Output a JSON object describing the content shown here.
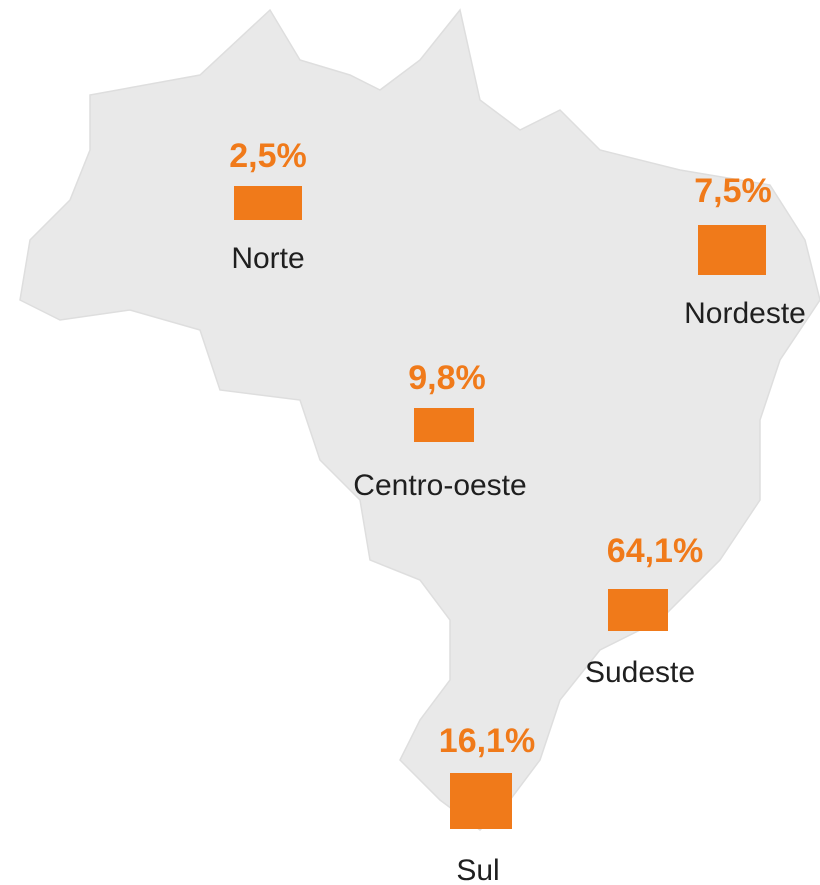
{
  "regions": [
    {
      "name": "Norte",
      "value": 2.5,
      "value_label": "2,5%"
    },
    {
      "name": "Nordeste",
      "value": 7.5,
      "value_label": "7,5%"
    },
    {
      "name": "Centro-oeste",
      "value": 9.8,
      "value_label": "9,8%"
    },
    {
      "name": "Sudeste",
      "value": 64.1,
      "value_label": "64,1%"
    },
    {
      "name": "Sul",
      "value": 16.1,
      "value_label": "16,1%"
    }
  ]
}
